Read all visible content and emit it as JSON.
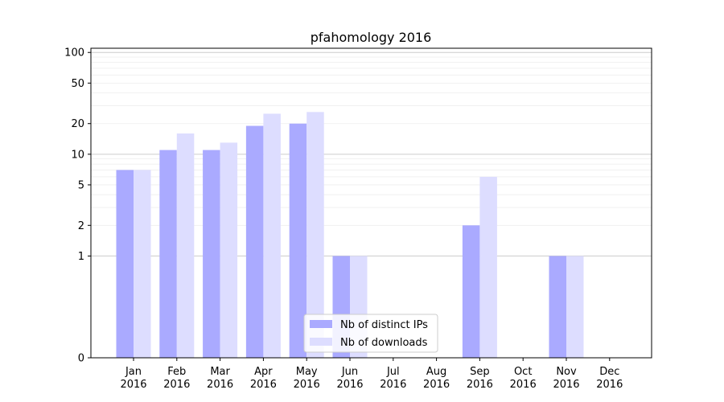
{
  "chart_data": {
    "type": "bar",
    "title": "pfahomology 2016",
    "xlabel": "",
    "ylabel": "",
    "yscale": "symlog",
    "ylim": [
      0,
      110
    ],
    "yticks": [
      0,
      1,
      2,
      5,
      10,
      20,
      50,
      100
    ],
    "categories": [
      {
        "month": "Jan",
        "year": "2016"
      },
      {
        "month": "Feb",
        "year": "2016"
      },
      {
        "month": "Mar",
        "year": "2016"
      },
      {
        "month": "Apr",
        "year": "2016"
      },
      {
        "month": "May",
        "year": "2016"
      },
      {
        "month": "Jun",
        "year": "2016"
      },
      {
        "month": "Jul",
        "year": "2016"
      },
      {
        "month": "Aug",
        "year": "2016"
      },
      {
        "month": "Sep",
        "year": "2016"
      },
      {
        "month": "Oct",
        "year": "2016"
      },
      {
        "month": "Nov",
        "year": "2016"
      },
      {
        "month": "Dec",
        "year": "2016"
      }
    ],
    "series": [
      {
        "name": "Nb of distinct IPs",
        "color": "#aaaaff",
        "values": [
          7,
          11,
          11,
          19,
          20,
          1,
          0,
          0,
          2,
          0,
          1,
          0
        ]
      },
      {
        "name": "Nb of downloads",
        "color": "#ddddff",
        "values": [
          7,
          16,
          13,
          25,
          26,
          1,
          0,
          0,
          6,
          0,
          1,
          0
        ]
      }
    ],
    "grid": true,
    "legend_position": "bottom-center"
  }
}
